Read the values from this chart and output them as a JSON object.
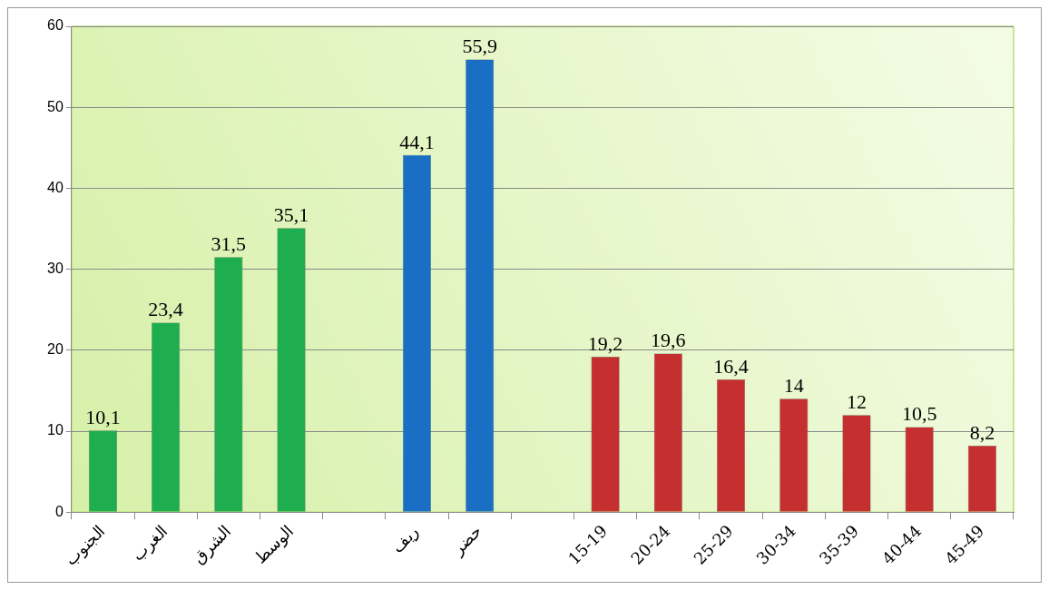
{
  "chart_data": {
    "type": "bar",
    "categories": [
      "الجنوب",
      "الغرب",
      "الشرق",
      "الوسط",
      null,
      "ريف",
      "حضر",
      null,
      "15-19",
      "20-24",
      "25-29",
      "30-34",
      "35-39",
      "40-44",
      "45-49"
    ],
    "values": [
      10.1,
      23.4,
      31.5,
      35.1,
      null,
      44.1,
      55.9,
      null,
      19.2,
      19.6,
      16.4,
      14,
      12,
      10.5,
      8.2
    ],
    "colors": [
      "#1fae4f",
      "#1fae4f",
      "#1fae4f",
      "#1fae4f",
      null,
      "#1a6fc4",
      "#1a6fc4",
      null,
      "#c62f2f",
      "#c62f2f",
      "#c62f2f",
      "#c62f2f",
      "#c62f2f",
      "#c62f2f",
      "#c62f2f"
    ],
    "value_labels": [
      "10,1",
      "23,4",
      "31,5",
      "35,1",
      null,
      "44,1",
      "55,9",
      null,
      "19,2",
      "19,6",
      "16,4",
      "14",
      "12",
      "10,5",
      "8,2"
    ],
    "ylim": [
      0,
      60
    ],
    "yticks": [
      0,
      10,
      20,
      30,
      40,
      50,
      60
    ],
    "grid": "y",
    "legend": false
  }
}
